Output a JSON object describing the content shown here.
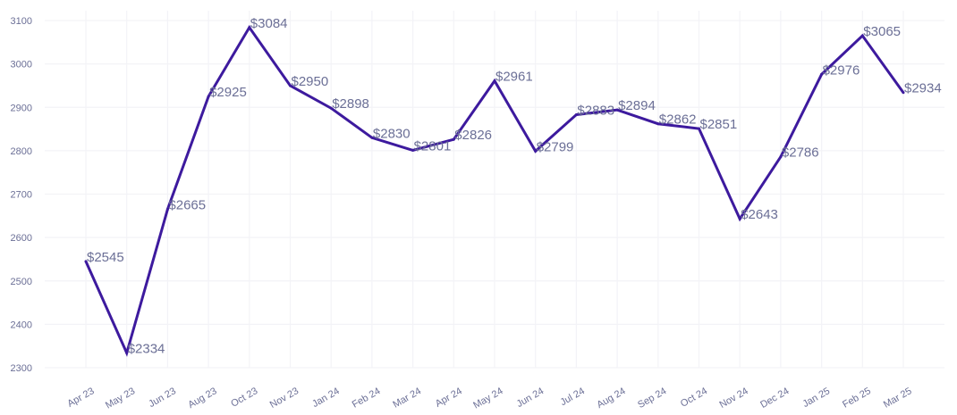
{
  "chart_data": {
    "type": "line",
    "title": "",
    "xlabel": "",
    "ylabel": "",
    "categories": [
      "Apr 23",
      "May 23",
      "Jun 23",
      "Aug 23",
      "Oct 23",
      "Nov 23",
      "Jan 24",
      "Feb 24",
      "Mar 24",
      "Apr 24",
      "May 24",
      "Jun 24",
      "Jul 24",
      "Aug 24",
      "Sep 24",
      "Oct 24",
      "Nov 24",
      "Dec 24",
      "Jan 25",
      "Feb 25",
      "Mar 25"
    ],
    "series": [
      {
        "values": [
          2545,
          2334,
          2665,
          2925,
          3084,
          2950,
          2898,
          2830,
          2801,
          2826,
          2961,
          2799,
          2883,
          2894,
          2862,
          2851,
          2643,
          2786,
          2976,
          3065,
          2934
        ],
        "labels": [
          "$2545",
          "$2334",
          "$2665",
          "$2925",
          "$3084",
          "$2950",
          "$2898",
          "$2830",
          "$2801",
          "$2826",
          "$2961",
          "$2799",
          "$2883",
          "$2894",
          "$2862",
          "$2851",
          "$2643",
          "$2786",
          "$2976",
          "$3065",
          "$2934"
        ],
        "color": "#3d1a9e"
      }
    ],
    "ylim": [
      2300,
      3100
    ],
    "yticks": [
      2300,
      2400,
      2500,
      2600,
      2700,
      2800,
      2900,
      3000,
      3100
    ],
    "grid": true,
    "legend": "none",
    "colors": {
      "line": "#3d1a9e",
      "tick_text": "#6b6f96",
      "label_text": "#6b6f96",
      "grid": "#f3f3f7"
    }
  }
}
